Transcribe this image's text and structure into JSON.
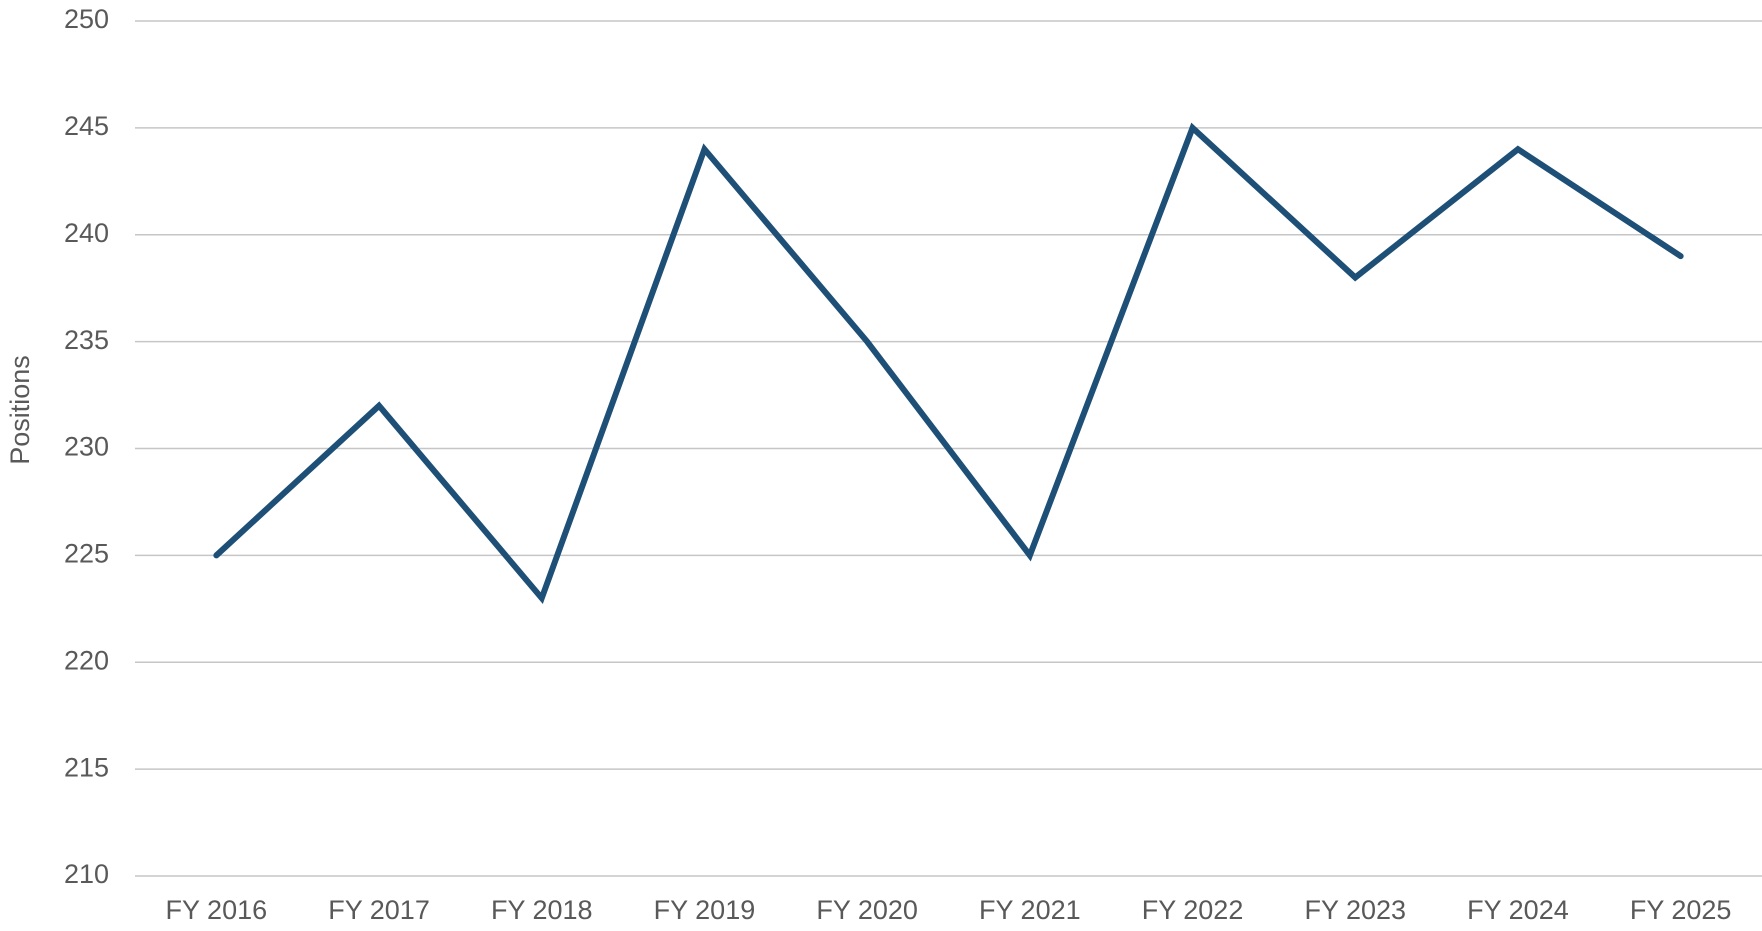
{
  "chart_data": {
    "type": "line",
    "y_label": "Positions",
    "categories": [
      "FY 2016",
      "FY 2017",
      "FY 2018",
      "FY 2019",
      "FY 2020",
      "FY 2021",
      "FY 2022",
      "FY 2023",
      "FY 2024",
      "FY 2025"
    ],
    "series": [
      {
        "name": "Positions",
        "color": "#1d4f77",
        "values": [
          225,
          232,
          223,
          244,
          235,
          225,
          245,
          238,
          244,
          239
        ]
      }
    ],
    "ylim": [
      210,
      250
    ],
    "yticks": [
      210,
      215,
      220,
      225,
      230,
      235,
      240,
      245,
      250
    ],
    "grid": true
  }
}
